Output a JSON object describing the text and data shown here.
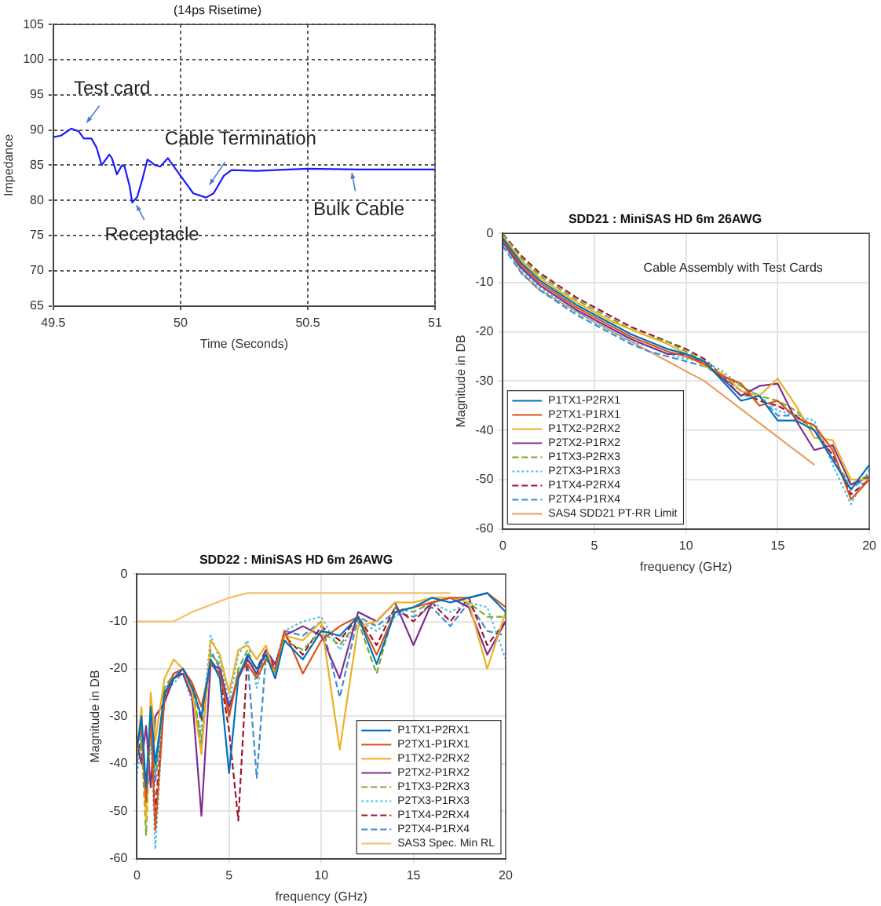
{
  "chart_data": [
    {
      "type": "line",
      "title": "(14ps Risetime)",
      "xlabel": "Time (Seconds)",
      "ylabel": "Impedance",
      "xlim": [
        49.5,
        51
      ],
      "xticks": [
        49.5,
        50,
        50.5,
        51
      ],
      "ylim": [
        65,
        105
      ],
      "yticks": [
        65,
        70,
        75,
        80,
        85,
        90,
        95,
        100,
        105
      ],
      "grid": true,
      "legend": false,
      "annotations": [
        {
          "text": "Test card",
          "x": 49.62,
          "y": 90.5
        },
        {
          "text": "Receptacle",
          "x": 49.82,
          "y": 79.8
        },
        {
          "text": "Cable Termination",
          "x": 50.1,
          "y": 81.5
        },
        {
          "text": "Bulk Cable",
          "x": 50.67,
          "y": 84.5
        }
      ],
      "series": [
        {
          "color": "#1a1aff",
          "line_style": "solid",
          "x": [
            49.5,
            49.53,
            49.57,
            49.6,
            49.62,
            49.65,
            49.67,
            49.69,
            49.7,
            49.72,
            49.73,
            49.75,
            49.77,
            49.78,
            49.8,
            49.81,
            49.83,
            49.85,
            49.87,
            49.9,
            49.92,
            49.95,
            49.97,
            50,
            50.05,
            50.1,
            50.13,
            50.17,
            50.2,
            50.3,
            50.5,
            50.7,
            51
          ],
          "values": [
            89,
            89.2,
            90.2,
            89.8,
            88.8,
            88.8,
            87.5,
            85,
            85.5,
            86.5,
            86,
            83.7,
            85,
            84.8,
            82,
            79.7,
            80.5,
            83,
            85.8,
            85,
            84.8,
            86,
            85,
            83.5,
            81,
            80.4,
            81,
            83.5,
            84.3,
            84.2,
            84.5,
            84.4,
            84.4
          ]
        }
      ]
    },
    {
      "type": "line",
      "title": "SDD21 : MiniSAS HD 6m 26AWG",
      "xlabel": "frequency (GHz)",
      "ylabel": "Magnitude in DB",
      "xlim": [
        0,
        20
      ],
      "xticks": [
        0,
        5,
        10,
        15,
        20
      ],
      "ylim": [
        -60,
        0
      ],
      "yticks": [
        -60,
        -50,
        -40,
        -30,
        -20,
        -10,
        0
      ],
      "grid": true,
      "legend": "bottom left",
      "annotations": [
        "Cable Assembly with Test Cards"
      ],
      "series": [
        {
          "name": "P1TX1-P2RX1",
          "color": "#0072bd",
          "line_style": "solid",
          "x": [
            0,
            1,
            2,
            3,
            4,
            5,
            6,
            7,
            8,
            9,
            10,
            11,
            12,
            13,
            14,
            15,
            16,
            17,
            18,
            19,
            20
          ],
          "values": [
            -1,
            -6,
            -9.5,
            -12,
            -14.5,
            -16.5,
            -18.5,
            -20.5,
            -22,
            -23.5,
            -24.5,
            -26,
            -30,
            -34,
            -33,
            -38,
            -38,
            -40,
            -46,
            -52,
            -47
          ]
        },
        {
          "name": "P2TX1-P1RX1",
          "color": "#d95319",
          "line_style": "solid",
          "x": [
            0,
            1,
            2,
            3,
            4,
            5,
            6,
            7,
            8,
            9,
            10,
            11,
            12,
            13,
            14,
            15,
            16,
            17,
            18,
            19,
            20
          ],
          "values": [
            -1.4,
            -6.5,
            -10,
            -12.5,
            -15,
            -17,
            -19,
            -21,
            -22.5,
            -24,
            -25,
            -26.5,
            -29,
            -30.5,
            -35,
            -34,
            -37.5,
            -39,
            -44,
            -54,
            -50
          ]
        },
        {
          "name": "P1TX2-P2RX2",
          "color": "#edb120",
          "line_style": "solid",
          "x": [
            0,
            1,
            2,
            3,
            4,
            5,
            6,
            7,
            8,
            9,
            10,
            11,
            12,
            13,
            14,
            15,
            16,
            17,
            18,
            19,
            20
          ],
          "values": [
            -0.6,
            -5.5,
            -9,
            -11.5,
            -14,
            -16,
            -18,
            -19.5,
            -21,
            -22.5,
            -24.5,
            -27,
            -28.5,
            -32,
            -33,
            -29.5,
            -35,
            -41.5,
            -42,
            -50,
            -50
          ]
        },
        {
          "name": "P2TX2-P1RX2",
          "color": "#7e2f8e",
          "line_style": "solid",
          "x": [
            0,
            1,
            2,
            3,
            4,
            5,
            6,
            7,
            8,
            9,
            10,
            11,
            12,
            13,
            14,
            15,
            16,
            17,
            18,
            19,
            20
          ],
          "values": [
            -1.8,
            -7,
            -10.5,
            -13,
            -15.5,
            -17.5,
            -19.5,
            -21.5,
            -23,
            -24.5,
            -24.5,
            -26.5,
            -29.5,
            -33,
            -31,
            -30.5,
            -38,
            -44,
            -43,
            -51,
            -49.5
          ]
        },
        {
          "name": "P1TX3-P2RX3",
          "color": "#77ac30",
          "line_style": "dashed",
          "x": [
            0,
            1,
            2,
            3,
            4,
            5,
            6,
            7,
            8,
            9,
            10,
            11,
            12,
            13,
            14,
            15,
            16,
            17,
            18,
            19,
            20
          ],
          "values": [
            -0.2,
            -5,
            -8.5,
            -11,
            -13.5,
            -15.5,
            -17.5,
            -19.5,
            -21,
            -22,
            -24,
            -26,
            -29,
            -31,
            -33,
            -34,
            -36,
            -40,
            -46,
            -51,
            -49
          ]
        },
        {
          "name": "P2TX3-P1RX3",
          "color": "#4dbeee",
          "line_style": "dotted",
          "x": [
            0,
            1,
            2,
            3,
            4,
            5,
            6,
            7,
            8,
            9,
            10,
            11,
            12,
            13,
            14,
            15,
            16,
            17,
            18,
            19,
            20
          ],
          "values": [
            -2.2,
            -7.5,
            -11,
            -13.5,
            -16,
            -18,
            -20,
            -22,
            -23,
            -24.5,
            -25.5,
            -26,
            -28,
            -31,
            -33,
            -36,
            -37,
            -38,
            -47,
            -55,
            -48
          ]
        },
        {
          "name": "P1TX4-P2RX4",
          "color": "#a2142f",
          "line_style": "dashed",
          "x": [
            0,
            1,
            2,
            3,
            4,
            5,
            6,
            7,
            8,
            9,
            10,
            11,
            12,
            13,
            14,
            15,
            16,
            17,
            18,
            19,
            20
          ],
          "values": [
            -0.1,
            -4.5,
            -8,
            -10.5,
            -13,
            -15,
            -17,
            -19,
            -20.5,
            -22,
            -23.5,
            -25.5,
            -29,
            -32,
            -34,
            -35,
            -37,
            -40,
            -45,
            -53,
            -50
          ]
        },
        {
          "name": "P2TX4-P1RX4",
          "color": "#3d8fd1",
          "line_style": "dashed",
          "x": [
            0,
            1,
            2,
            3,
            4,
            5,
            6,
            7,
            8,
            9,
            10,
            11,
            12,
            13,
            14,
            15,
            16,
            17,
            18,
            19,
            20
          ],
          "values": [
            -2.6,
            -8,
            -11.5,
            -14,
            -16.5,
            -18.5,
            -20.5,
            -22.5,
            -24,
            -25,
            -26,
            -27,
            -29,
            -33,
            -33,
            -37,
            -37,
            -39,
            -46,
            -52,
            -49
          ]
        },
        {
          "name": "SAS4 SDD21 PT-RR Limit",
          "color": "#e8a060",
          "line_style": "solid",
          "x": [
            0,
            1,
            2,
            5,
            8,
            11,
            17
          ],
          "values": [
            -1,
            -8,
            -11.5,
            -18,
            -24,
            -30,
            -47
          ]
        }
      ]
    },
    {
      "type": "line",
      "title": "SDD22 : MiniSAS HD 6m 26AWG",
      "xlabel": "frequency (GHz)",
      "ylabel": "Magnitude in DB",
      "xlim": [
        0,
        20
      ],
      "xticks": [
        0,
        5,
        10,
        15,
        20
      ],
      "ylim": [
        -60,
        0
      ],
      "yticks": [
        -60,
        -50,
        -40,
        -30,
        -20,
        -10,
        0
      ],
      "grid": true,
      "legend": "bottom right",
      "series": [
        {
          "name": "P1TX1-P2RX1",
          "color": "#0072bd",
          "line_style": "solid",
          "x": [
            0,
            0.25,
            0.5,
            0.75,
            1,
            1.5,
            2,
            2.5,
            3,
            3.5,
            4,
            4.5,
            5,
            5.5,
            6,
            6.5,
            7,
            7.5,
            8,
            9,
            10,
            11,
            12,
            13,
            14,
            15,
            16,
            17,
            18,
            19,
            20
          ],
          "values": [
            -37,
            -30,
            -45,
            -28,
            -40,
            -25,
            -22,
            -20,
            -24,
            -30,
            -18,
            -22,
            -42,
            -22,
            -17,
            -20,
            -17,
            -22,
            -14,
            -18,
            -12,
            -13,
            -9,
            -19,
            -8,
            -7,
            -5,
            -6,
            -5,
            -4,
            -8
          ]
        },
        {
          "name": "P2TX1-P1RX1",
          "color": "#d95319",
          "line_style": "solid",
          "x": [
            0,
            0.25,
            0.5,
            0.75,
            1,
            1.5,
            2,
            2.5,
            3,
            3.5,
            4,
            4.5,
            5,
            5.5,
            6,
            6.5,
            7,
            7.5,
            8,
            9,
            10,
            11,
            12,
            13,
            14,
            15,
            16,
            17,
            18,
            19,
            20
          ],
          "values": [
            -35,
            -33,
            -48,
            -30,
            -54,
            -26,
            -21,
            -20,
            -23,
            -28,
            -19,
            -21,
            -30,
            -21,
            -19,
            -22,
            -18,
            -20,
            -12,
            -21,
            -14,
            -11,
            -9,
            -17,
            -8,
            -7,
            -6,
            -5,
            -5,
            -4,
            -7
          ]
        },
        {
          "name": "P1TX2-P2RX2",
          "color": "#edb120",
          "line_style": "solid",
          "x": [
            0,
            0.25,
            0.5,
            0.75,
            1,
            1.5,
            2,
            2.5,
            3,
            3.5,
            4,
            4.5,
            5,
            5.5,
            6,
            6.5,
            7,
            7.5,
            8,
            9,
            10,
            11,
            12,
            13,
            14,
            15,
            16,
            17,
            18,
            19,
            20
          ],
          "values": [
            -38,
            -28,
            -52,
            -25,
            -35,
            -22,
            -18,
            -20,
            -25,
            -38,
            -14,
            -17,
            -25,
            -16,
            -15,
            -18,
            -15,
            -22,
            -13,
            -14,
            -10,
            -37,
            -11,
            -10,
            -6,
            -6,
            -5,
            -5,
            -6,
            -20,
            -8
          ]
        },
        {
          "name": "P2TX2-P1RX2",
          "color": "#7e2f8e",
          "line_style": "solid",
          "x": [
            0,
            0.25,
            0.5,
            0.75,
            1,
            1.5,
            2,
            2.5,
            3,
            3.5,
            4,
            4.5,
            5,
            5.5,
            6,
            6.5,
            7,
            7.5,
            8,
            9,
            10,
            11,
            12,
            13,
            14,
            15,
            16,
            17,
            18,
            19,
            20
          ],
          "values": [
            -36,
            -40,
            -32,
            -45,
            -30,
            -27,
            -22,
            -21,
            -26,
            -51,
            -19,
            -20,
            -28,
            -22,
            -18,
            -21,
            -16,
            -19,
            -13,
            -11,
            -13,
            -22,
            -8,
            -10,
            -6,
            -15,
            -6,
            -5,
            -7,
            -17,
            -10
          ]
        },
        {
          "name": "P1TX3-P2RX3",
          "color": "#77ac30",
          "line_style": "dashed",
          "x": [
            0,
            0.25,
            0.5,
            0.75,
            1,
            1.5,
            2,
            2.5,
            3,
            3.5,
            4,
            4.5,
            5,
            5.5,
            6,
            6.5,
            7,
            7.5,
            8,
            9,
            10,
            11,
            12,
            13,
            14,
            15,
            16,
            17,
            18,
            19,
            20
          ],
          "values": [
            -40,
            -35,
            -55,
            -30,
            -42,
            -24,
            -21,
            -20,
            -24,
            -35,
            -17,
            -19,
            -30,
            -20,
            -16,
            -22,
            -17,
            -21,
            -14,
            -16,
            -12,
            -15,
            -10,
            -21,
            -7,
            -8,
            -6,
            -5,
            -6,
            -9,
            -9
          ]
        },
        {
          "name": "P2TX3-P1RX3",
          "color": "#4dbeee",
          "line_style": "dotted",
          "x": [
            0,
            0.25,
            0.5,
            0.75,
            1,
            1.5,
            2,
            2.5,
            3,
            3.5,
            4,
            4.5,
            5,
            5.5,
            6,
            6.5,
            7,
            7.5,
            8,
            9,
            10,
            11,
            12,
            13,
            14,
            15,
            16,
            17,
            18,
            19,
            20
          ],
          "values": [
            -42,
            -36,
            -50,
            -33,
            -58,
            -25,
            -23,
            -21,
            -27,
            -33,
            -13,
            -18,
            -27,
            -17,
            -14,
            -24,
            -16,
            -19,
            -12,
            -10,
            -9,
            -16,
            -10,
            -12,
            -9,
            -7,
            -6,
            -8,
            -6,
            -7,
            -18
          ]
        },
        {
          "name": "P1TX4-P2RX4",
          "color": "#a2142f",
          "line_style": "dashed",
          "x": [
            0,
            0.25,
            0.5,
            0.75,
            1,
            1.5,
            2,
            2.5,
            3,
            3.5,
            4,
            4.5,
            5,
            5.5,
            6,
            6.5,
            7,
            7.5,
            8,
            9,
            10,
            11,
            12,
            13,
            14,
            15,
            16,
            17,
            18,
            19,
            20
          ],
          "values": [
            -34,
            -38,
            -46,
            -31,
            -50,
            -26,
            -22,
            -20,
            -23,
            -31,
            -18,
            -21,
            -33,
            -52,
            -17,
            -20,
            -16,
            -20,
            -13,
            -17,
            -11,
            -14,
            -9,
            -15,
            -7,
            -10,
            -6,
            -10,
            -5,
            -15,
            -10
          ]
        },
        {
          "name": "P2TX4-P1RX4",
          "color": "#3d8fd1",
          "line_style": "dashed",
          "x": [
            0,
            0.25,
            0.5,
            0.75,
            1,
            1.5,
            2,
            2.5,
            3,
            3.5,
            4,
            4.5,
            5,
            5.5,
            6,
            6.5,
            7,
            7.5,
            8,
            9,
            10,
            11,
            12,
            13,
            14,
            15,
            16,
            17,
            18,
            19,
            20
          ],
          "values": [
            -39,
            -32,
            -48,
            -29,
            -44,
            -25,
            -21,
            -21,
            -25,
            -36,
            -16,
            -20,
            -29,
            -21,
            -18,
            -43,
            -17,
            -21,
            -12,
            -13,
            -10,
            -26,
            -9,
            -11,
            -8,
            -9,
            -7,
            -11,
            -6,
            -12,
            -13
          ]
        },
        {
          "name": "SAS3 Spec. Min RL",
          "color": "#f0c070",
          "line_style": "solid",
          "x": [
            0,
            2,
            3,
            4,
            5,
            6,
            17
          ],
          "values": [
            -10,
            -10,
            -8,
            -6.5,
            -5,
            -4,
            -4
          ]
        }
      ]
    }
  ]
}
